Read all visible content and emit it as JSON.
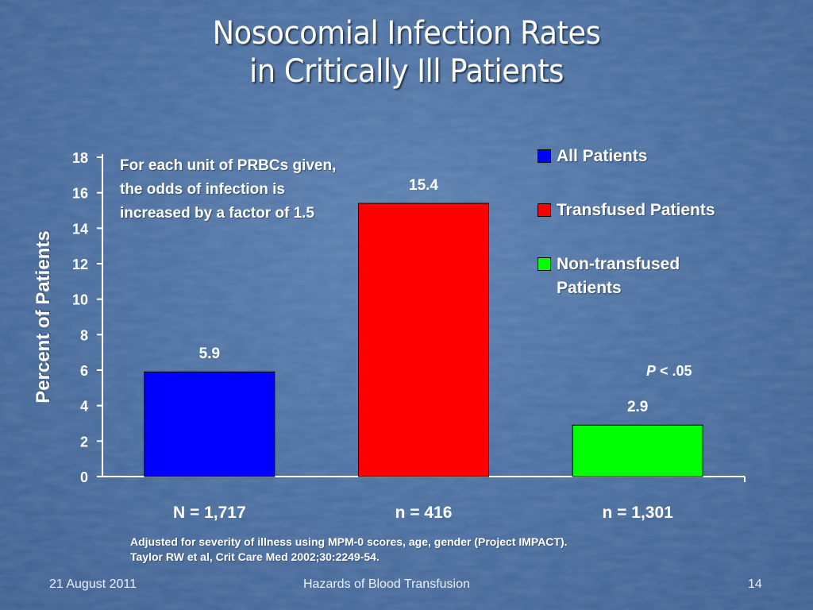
{
  "slide": {
    "title_line1": "Nosocomial Infection Rates",
    "title_line2": "in Critically Ill Patients",
    "annotation": "For each unit of PRBCs given, the odds of infection is increased by a factor of 1.5",
    "p_value_symbol": "P",
    "p_value_rest": "< .05",
    "footnote_line1": "Adjusted for severity of illness using MPM-0 scores, age, gender (Project IMPACT).",
    "footnote_line2": "Taylor RW et al, Crit Care Med 2002;30:2249-54.",
    "footer_date": "21 August 2011",
    "footer_center": "Hazards of Blood Transfusion",
    "footer_page": "14"
  },
  "chart_data": {
    "type": "bar",
    "title": "",
    "xlabel": "",
    "ylabel": "Percent of Patients",
    "ylim": [
      0,
      18
    ],
    "yticks": [
      0,
      2,
      4,
      6,
      8,
      10,
      12,
      14,
      16,
      18
    ],
    "categories": [
      "N = 1,717",
      "n = 416",
      "n = 1,301"
    ],
    "values": [
      5.9,
      15.4,
      2.9
    ],
    "data_labels": [
      "5.9",
      "15.4",
      "2.9"
    ],
    "series": [
      {
        "name": "All Patients",
        "color": "#0000ff",
        "value": 5.9
      },
      {
        "name": "Transfused Patients",
        "color": "#ff0000",
        "value": 15.4
      },
      {
        "name": "Non-transfused Patients",
        "color": "#00ff00",
        "value": 2.9
      }
    ],
    "legend_placement": "top-right",
    "grid": false
  }
}
